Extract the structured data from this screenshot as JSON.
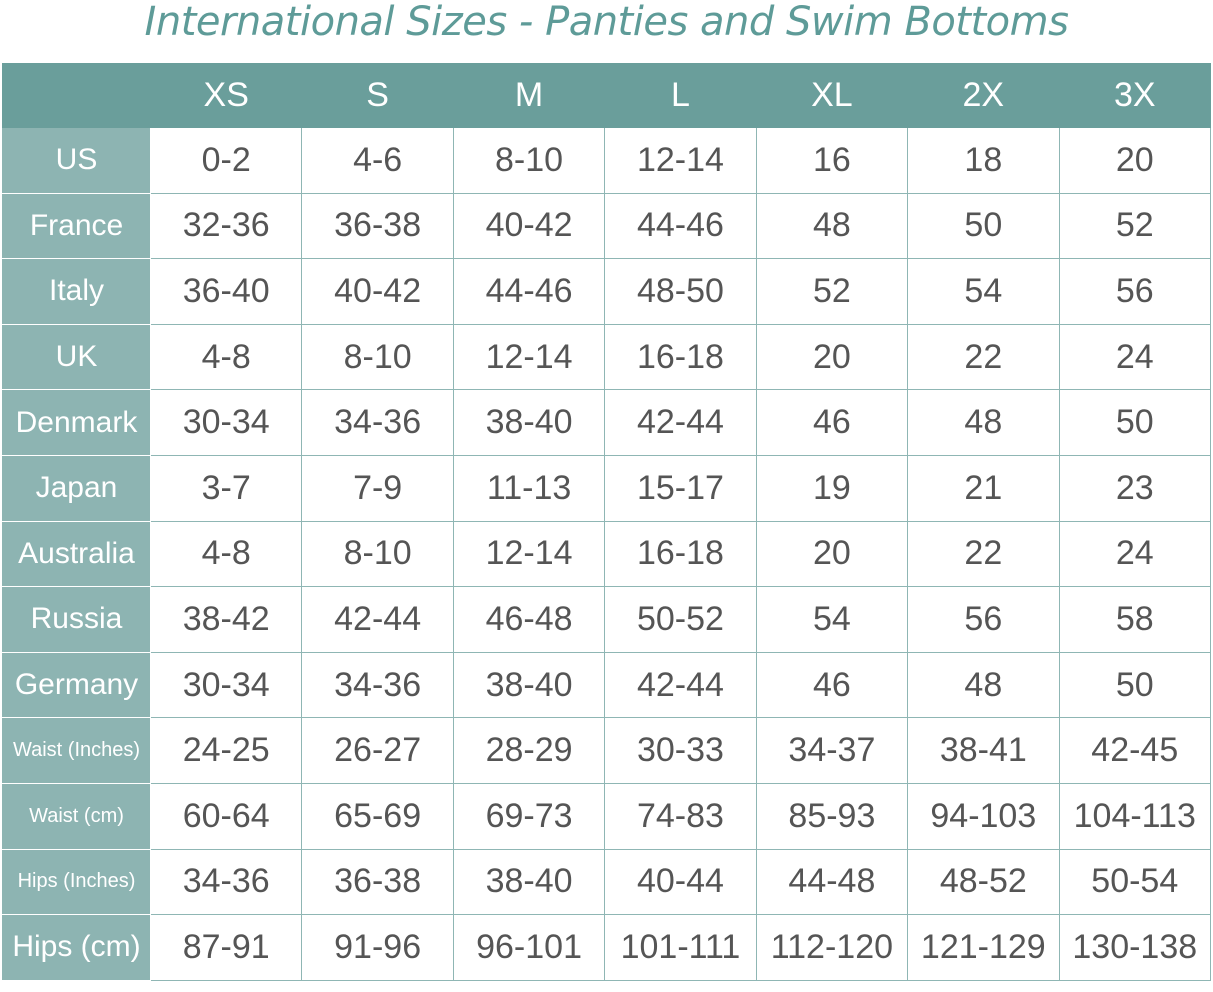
{
  "header": {
    "title": "International Sizes - Panties and Swim Bottoms"
  },
  "table": {
    "columns": [
      "XS",
      "S",
      "M",
      "L",
      "XL",
      "2X",
      "3X"
    ],
    "rows": [
      {
        "label": "US",
        "values": [
          "0-2",
          "4-6",
          "8-10",
          "12-14",
          "16",
          "18",
          "20"
        ]
      },
      {
        "label": "France",
        "values": [
          "32-36",
          "36-38",
          "40-42",
          "44-46",
          "48",
          "50",
          "52"
        ]
      },
      {
        "label": "Italy",
        "values": [
          "36-40",
          "40-42",
          "44-46",
          "48-50",
          "52",
          "54",
          "56"
        ]
      },
      {
        "label": "UK",
        "values": [
          "4-8",
          "8-10",
          "12-14",
          "16-18",
          "20",
          "22",
          "24"
        ]
      },
      {
        "label": "Denmark",
        "values": [
          "30-34",
          "34-36",
          "38-40",
          "42-44",
          "46",
          "48",
          "50"
        ]
      },
      {
        "label": "Japan",
        "values": [
          "3-7",
          "7-9",
          "11-13",
          "15-17",
          "19",
          "21",
          "23"
        ]
      },
      {
        "label": "Australia",
        "values": [
          "4-8",
          "8-10",
          "12-14",
          "16-18",
          "20",
          "22",
          "24"
        ]
      },
      {
        "label": "Russia",
        "values": [
          "38-42",
          "42-44",
          "46-48",
          "50-52",
          "54",
          "56",
          "58"
        ]
      },
      {
        "label": "Germany",
        "values": [
          "30-34",
          "34-36",
          "38-40",
          "42-44",
          "46",
          "48",
          "50"
        ]
      },
      {
        "label": "Waist (Inches)",
        "values": [
          "24-25",
          "26-27",
          "28-29",
          "30-33",
          "34-37",
          "38-41",
          "42-45"
        ]
      },
      {
        "label": "Waist (cm)",
        "values": [
          "60-64",
          "65-69",
          "69-73",
          "74-83",
          "85-93",
          "94-103",
          "104-113"
        ]
      },
      {
        "label": "Hips (Inches)",
        "values": [
          "34-36",
          "36-38",
          "38-40",
          "40-44",
          "44-48",
          "48-52",
          "50-54"
        ]
      },
      {
        "label": "Hips (cm)",
        "values": [
          "87-91",
          "91-96",
          "96-101",
          "101-111",
          "112-120",
          "121-129",
          "130-138"
        ]
      }
    ]
  }
}
